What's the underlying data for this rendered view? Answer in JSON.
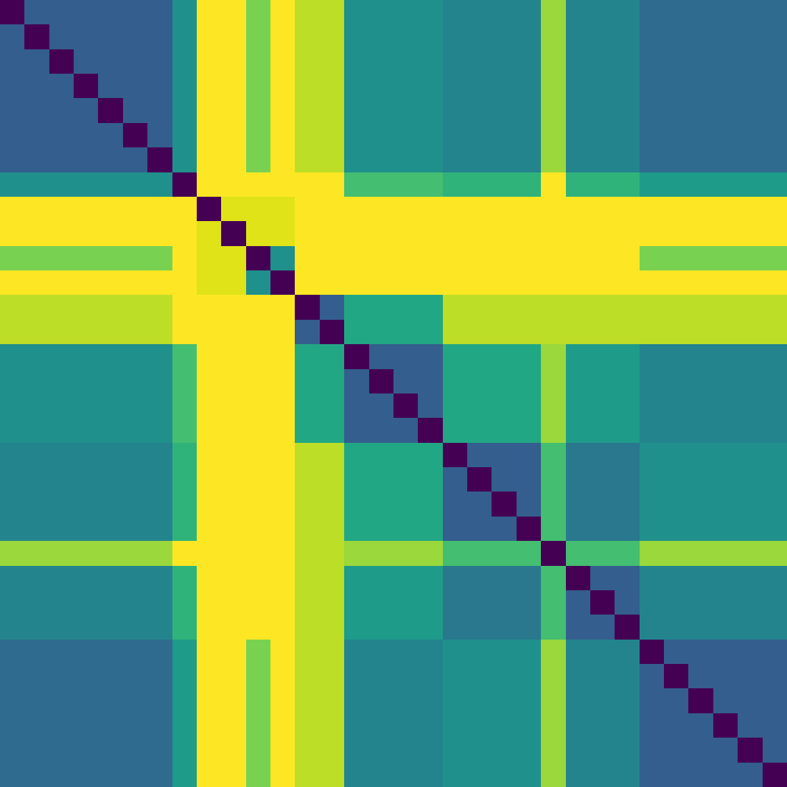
{
  "chart_data": {
    "type": "heatmap",
    "tick_labels": false,
    "cells": [
      [
        0.0,
        0.3,
        0.3,
        0.3,
        0.3,
        0.3,
        0.3,
        0.5,
        1.0,
        1.0,
        0.8,
        1.0,
        0.9,
        0.9,
        0.5,
        0.5,
        0.5,
        0.5,
        0.45,
        0.45,
        0.45,
        0.45,
        0.85,
        0.45,
        0.45,
        0.45,
        0.35,
        0.35,
        0.35,
        0.35,
        0.35,
        0.35
      ],
      [
        0.3,
        0.0,
        0.3,
        0.3,
        0.3,
        0.3,
        0.3,
        0.5,
        1.0,
        1.0,
        0.8,
        1.0,
        0.9,
        0.9,
        0.5,
        0.5,
        0.5,
        0.5,
        0.45,
        0.45,
        0.45,
        0.45,
        0.85,
        0.45,
        0.45,
        0.45,
        0.35,
        0.35,
        0.35,
        0.35,
        0.35,
        0.35
      ],
      [
        0.3,
        0.3,
        0.0,
        0.3,
        0.3,
        0.3,
        0.3,
        0.5,
        1.0,
        1.0,
        0.8,
        1.0,
        0.9,
        0.9,
        0.5,
        0.5,
        0.5,
        0.5,
        0.45,
        0.45,
        0.45,
        0.45,
        0.85,
        0.45,
        0.45,
        0.45,
        0.35,
        0.35,
        0.35,
        0.35,
        0.35,
        0.35
      ],
      [
        0.3,
        0.3,
        0.3,
        0.0,
        0.3,
        0.3,
        0.3,
        0.5,
        1.0,
        1.0,
        0.8,
        1.0,
        0.9,
        0.9,
        0.5,
        0.5,
        0.5,
        0.5,
        0.45,
        0.45,
        0.45,
        0.45,
        0.85,
        0.45,
        0.45,
        0.45,
        0.35,
        0.35,
        0.35,
        0.35,
        0.35,
        0.35
      ],
      [
        0.3,
        0.3,
        0.3,
        0.3,
        0.0,
        0.3,
        0.3,
        0.5,
        1.0,
        1.0,
        0.8,
        1.0,
        0.9,
        0.9,
        0.5,
        0.5,
        0.5,
        0.5,
        0.45,
        0.45,
        0.45,
        0.45,
        0.85,
        0.45,
        0.45,
        0.45,
        0.35,
        0.35,
        0.35,
        0.35,
        0.35,
        0.35
      ],
      [
        0.3,
        0.3,
        0.3,
        0.3,
        0.3,
        0.0,
        0.3,
        0.5,
        1.0,
        1.0,
        0.8,
        1.0,
        0.9,
        0.9,
        0.5,
        0.5,
        0.5,
        0.5,
        0.45,
        0.45,
        0.45,
        0.45,
        0.85,
        0.45,
        0.45,
        0.45,
        0.35,
        0.35,
        0.35,
        0.35,
        0.35,
        0.35
      ],
      [
        0.3,
        0.3,
        0.3,
        0.3,
        0.3,
        0.3,
        0.0,
        0.5,
        1.0,
        1.0,
        0.8,
        1.0,
        0.9,
        0.9,
        0.5,
        0.5,
        0.5,
        0.5,
        0.45,
        0.45,
        0.45,
        0.45,
        0.85,
        0.45,
        0.45,
        0.45,
        0.35,
        0.35,
        0.35,
        0.35,
        0.35,
        0.35
      ],
      [
        0.5,
        0.5,
        0.5,
        0.5,
        0.5,
        0.5,
        0.5,
        0.0,
        1.0,
        1.0,
        1.0,
        1.0,
        1.0,
        1.0,
        0.7,
        0.7,
        0.7,
        0.7,
        0.65,
        0.65,
        0.65,
        0.65,
        1.0,
        0.65,
        0.65,
        0.65,
        0.55,
        0.55,
        0.55,
        0.55,
        0.55,
        0.55
      ],
      [
        1.0,
        1.0,
        1.0,
        1.0,
        1.0,
        1.0,
        1.0,
        1.0,
        0.0,
        0.95,
        0.95,
        0.95,
        1.0,
        1.0,
        1.0,
        1.0,
        1.0,
        1.0,
        1.0,
        1.0,
        1.0,
        1.0,
        1.0,
        1.0,
        1.0,
        1.0,
        1.0,
        1.0,
        1.0,
        1.0,
        1.0,
        1.0
      ],
      [
        1.0,
        1.0,
        1.0,
        1.0,
        1.0,
        1.0,
        1.0,
        1.0,
        0.95,
        0.0,
        0.95,
        0.95,
        1.0,
        1.0,
        1.0,
        1.0,
        1.0,
        1.0,
        1.0,
        1.0,
        1.0,
        1.0,
        1.0,
        1.0,
        1.0,
        1.0,
        1.0,
        1.0,
        1.0,
        1.0,
        1.0,
        1.0
      ],
      [
        0.8,
        0.8,
        0.8,
        0.8,
        0.8,
        0.8,
        0.8,
        1.0,
        0.95,
        0.95,
        0.0,
        0.5,
        1.0,
        1.0,
        1.0,
        1.0,
        1.0,
        1.0,
        1.0,
        1.0,
        1.0,
        1.0,
        1.0,
        1.0,
        1.0,
        1.0,
        0.8,
        0.8,
        0.8,
        0.8,
        0.8,
        0.8
      ],
      [
        1.0,
        1.0,
        1.0,
        1.0,
        1.0,
        1.0,
        1.0,
        1.0,
        0.95,
        0.95,
        0.5,
        0.0,
        1.0,
        1.0,
        1.0,
        1.0,
        1.0,
        1.0,
        1.0,
        1.0,
        1.0,
        1.0,
        1.0,
        1.0,
        1.0,
        1.0,
        1.0,
        1.0,
        1.0,
        1.0,
        1.0,
        1.0
      ],
      [
        0.9,
        0.9,
        0.9,
        0.9,
        0.9,
        0.9,
        0.9,
        1.0,
        1.0,
        1.0,
        1.0,
        1.0,
        0.0,
        0.3,
        0.6,
        0.6,
        0.6,
        0.6,
        0.9,
        0.9,
        0.9,
        0.9,
        0.9,
        0.9,
        0.9,
        0.9,
        0.9,
        0.9,
        0.9,
        0.9,
        0.9,
        0.9
      ],
      [
        0.9,
        0.9,
        0.9,
        0.9,
        0.9,
        0.9,
        0.9,
        1.0,
        1.0,
        1.0,
        1.0,
        1.0,
        0.3,
        0.0,
        0.6,
        0.6,
        0.6,
        0.6,
        0.9,
        0.9,
        0.9,
        0.9,
        0.9,
        0.9,
        0.9,
        0.9,
        0.9,
        0.9,
        0.9,
        0.9,
        0.9,
        0.9
      ],
      [
        0.5,
        0.5,
        0.5,
        0.5,
        0.5,
        0.5,
        0.5,
        0.7,
        1.0,
        1.0,
        1.0,
        1.0,
        0.6,
        0.6,
        0.0,
        0.3,
        0.3,
        0.3,
        0.6,
        0.6,
        0.6,
        0.6,
        0.85,
        0.55,
        0.55,
        0.55,
        0.45,
        0.45,
        0.45,
        0.45,
        0.45,
        0.45
      ],
      [
        0.5,
        0.5,
        0.5,
        0.5,
        0.5,
        0.5,
        0.5,
        0.7,
        1.0,
        1.0,
        1.0,
        1.0,
        0.6,
        0.6,
        0.3,
        0.0,
        0.3,
        0.3,
        0.6,
        0.6,
        0.6,
        0.6,
        0.85,
        0.55,
        0.55,
        0.55,
        0.45,
        0.45,
        0.45,
        0.45,
        0.45,
        0.45
      ],
      [
        0.5,
        0.5,
        0.5,
        0.5,
        0.5,
        0.5,
        0.5,
        0.7,
        1.0,
        1.0,
        1.0,
        1.0,
        0.6,
        0.6,
        0.3,
        0.3,
        0.0,
        0.3,
        0.6,
        0.6,
        0.6,
        0.6,
        0.85,
        0.55,
        0.55,
        0.55,
        0.45,
        0.45,
        0.45,
        0.45,
        0.45,
        0.45
      ],
      [
        0.5,
        0.5,
        0.5,
        0.5,
        0.5,
        0.5,
        0.5,
        0.7,
        1.0,
        1.0,
        1.0,
        1.0,
        0.6,
        0.6,
        0.3,
        0.3,
        0.3,
        0.0,
        0.6,
        0.6,
        0.6,
        0.6,
        0.85,
        0.55,
        0.55,
        0.55,
        0.45,
        0.45,
        0.45,
        0.45,
        0.45,
        0.45
      ],
      [
        0.45,
        0.45,
        0.45,
        0.45,
        0.45,
        0.45,
        0.45,
        0.65,
        1.0,
        1.0,
        1.0,
        1.0,
        0.9,
        0.9,
        0.6,
        0.6,
        0.6,
        0.6,
        0.0,
        0.3,
        0.3,
        0.3,
        0.7,
        0.4,
        0.4,
        0.4,
        0.5,
        0.5,
        0.5,
        0.5,
        0.5,
        0.5
      ],
      [
        0.45,
        0.45,
        0.45,
        0.45,
        0.45,
        0.45,
        0.45,
        0.65,
        1.0,
        1.0,
        1.0,
        1.0,
        0.9,
        0.9,
        0.6,
        0.6,
        0.6,
        0.6,
        0.3,
        0.0,
        0.3,
        0.3,
        0.7,
        0.4,
        0.4,
        0.4,
        0.5,
        0.5,
        0.5,
        0.5,
        0.5,
        0.5
      ],
      [
        0.45,
        0.45,
        0.45,
        0.45,
        0.45,
        0.45,
        0.45,
        0.65,
        1.0,
        1.0,
        1.0,
        1.0,
        0.9,
        0.9,
        0.6,
        0.6,
        0.6,
        0.6,
        0.3,
        0.3,
        0.0,
        0.3,
        0.7,
        0.4,
        0.4,
        0.4,
        0.5,
        0.5,
        0.5,
        0.5,
        0.5,
        0.5
      ],
      [
        0.45,
        0.45,
        0.45,
        0.45,
        0.45,
        0.45,
        0.45,
        0.65,
        1.0,
        1.0,
        1.0,
        1.0,
        0.9,
        0.9,
        0.6,
        0.6,
        0.6,
        0.6,
        0.3,
        0.3,
        0.3,
        0.0,
        0.7,
        0.4,
        0.4,
        0.4,
        0.5,
        0.5,
        0.5,
        0.5,
        0.5,
        0.5
      ],
      [
        0.85,
        0.85,
        0.85,
        0.85,
        0.85,
        0.85,
        0.85,
        1.0,
        1.0,
        1.0,
        1.0,
        1.0,
        0.9,
        0.9,
        0.85,
        0.85,
        0.85,
        0.85,
        0.7,
        0.7,
        0.7,
        0.7,
        0.0,
        0.7,
        0.7,
        0.7,
        0.85,
        0.85,
        0.85,
        0.85,
        0.85,
        0.85
      ],
      [
        0.45,
        0.45,
        0.45,
        0.45,
        0.45,
        0.45,
        0.45,
        0.65,
        1.0,
        1.0,
        1.0,
        1.0,
        0.9,
        0.9,
        0.55,
        0.55,
        0.55,
        0.55,
        0.4,
        0.4,
        0.4,
        0.4,
        0.7,
        0.0,
        0.3,
        0.3,
        0.45,
        0.45,
        0.45,
        0.45,
        0.45,
        0.45
      ],
      [
        0.45,
        0.45,
        0.45,
        0.45,
        0.45,
        0.45,
        0.45,
        0.65,
        1.0,
        1.0,
        1.0,
        1.0,
        0.9,
        0.9,
        0.55,
        0.55,
        0.55,
        0.55,
        0.4,
        0.4,
        0.4,
        0.4,
        0.7,
        0.3,
        0.0,
        0.3,
        0.45,
        0.45,
        0.45,
        0.45,
        0.45,
        0.45
      ],
      [
        0.45,
        0.45,
        0.45,
        0.45,
        0.45,
        0.45,
        0.45,
        0.65,
        1.0,
        1.0,
        1.0,
        1.0,
        0.9,
        0.9,
        0.55,
        0.55,
        0.55,
        0.55,
        0.4,
        0.4,
        0.4,
        0.4,
        0.7,
        0.3,
        0.3,
        0.0,
        0.45,
        0.45,
        0.45,
        0.45,
        0.45,
        0.45
      ],
      [
        0.35,
        0.35,
        0.35,
        0.35,
        0.35,
        0.35,
        0.35,
        0.55,
        1.0,
        1.0,
        0.8,
        1.0,
        0.9,
        0.9,
        0.45,
        0.45,
        0.45,
        0.45,
        0.5,
        0.5,
        0.5,
        0.5,
        0.85,
        0.45,
        0.45,
        0.45,
        0.0,
        0.3,
        0.3,
        0.3,
        0.3,
        0.3
      ],
      [
        0.35,
        0.35,
        0.35,
        0.35,
        0.35,
        0.35,
        0.35,
        0.55,
        1.0,
        1.0,
        0.8,
        1.0,
        0.9,
        0.9,
        0.45,
        0.45,
        0.45,
        0.45,
        0.5,
        0.5,
        0.5,
        0.5,
        0.85,
        0.45,
        0.45,
        0.45,
        0.3,
        0.0,
        0.3,
        0.3,
        0.3,
        0.3
      ],
      [
        0.35,
        0.35,
        0.35,
        0.35,
        0.35,
        0.35,
        0.35,
        0.55,
        1.0,
        1.0,
        0.8,
        1.0,
        0.9,
        0.9,
        0.45,
        0.45,
        0.45,
        0.45,
        0.5,
        0.5,
        0.5,
        0.5,
        0.85,
        0.45,
        0.45,
        0.45,
        0.3,
        0.3,
        0.0,
        0.3,
        0.3,
        0.3
      ],
      [
        0.35,
        0.35,
        0.35,
        0.35,
        0.35,
        0.35,
        0.35,
        0.55,
        1.0,
        1.0,
        0.8,
        1.0,
        0.9,
        0.9,
        0.45,
        0.45,
        0.45,
        0.45,
        0.5,
        0.5,
        0.5,
        0.5,
        0.85,
        0.45,
        0.45,
        0.45,
        0.3,
        0.3,
        0.3,
        0.0,
        0.3,
        0.3
      ],
      [
        0.35,
        0.35,
        0.35,
        0.35,
        0.35,
        0.35,
        0.35,
        0.55,
        1.0,
        1.0,
        0.8,
        1.0,
        0.9,
        0.9,
        0.45,
        0.45,
        0.45,
        0.45,
        0.5,
        0.5,
        0.5,
        0.5,
        0.85,
        0.45,
        0.45,
        0.45,
        0.3,
        0.3,
        0.3,
        0.3,
        0.0,
        0.3
      ],
      [
        0.35,
        0.35,
        0.35,
        0.35,
        0.35,
        0.35,
        0.35,
        0.55,
        1.0,
        1.0,
        0.8,
        1.0,
        0.9,
        0.9,
        0.45,
        0.45,
        0.45,
        0.45,
        0.5,
        0.5,
        0.5,
        0.5,
        0.85,
        0.45,
        0.45,
        0.45,
        0.3,
        0.3,
        0.3,
        0.3,
        0.3,
        0.0
      ]
    ]
  }
}
